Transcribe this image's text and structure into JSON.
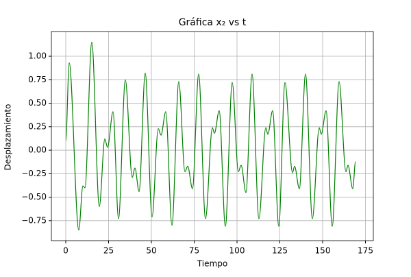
{
  "chart_data": {
    "type": "line",
    "title": "Gráfica x₂ vs t",
    "xlabel": "Tiempo",
    "ylabel": "Desplazamiento",
    "x": [
      0,
      2,
      7.6,
      10,
      11.2,
      15.2,
      19.6,
      22.8,
      24.4,
      27.6,
      30.8,
      34.8,
      38.8,
      40.4,
      42.8,
      46.4,
      50.4,
      54,
      55.6,
      58.4,
      62,
      66,
      69.6,
      71.2,
      74,
      77.6,
      81.6,
      85.6,
      86.8,
      89.6,
      93.2,
      97.2,
      100.8,
      102.4,
      105.2,
      108.8,
      112.8,
      116.8,
      118,
      120.8,
      124.4,
      128,
      132.4,
      133.6,
      136.4,
      140,
      144,
      148,
      149.2,
      152,
      155.6,
      159.6,
      163.6,
      164.8,
      167.6,
      169.2
    ],
    "series": [
      {
        "name": "x2",
        "color": "#008000",
        "values": [
          0.1,
          0.93,
          -0.85,
          -0.38,
          -0.4,
          1.15,
          -0.6,
          0.12,
          0.03,
          0.41,
          -0.73,
          0.75,
          -0.29,
          -0.19,
          -0.44,
          0.82,
          -0.71,
          0.23,
          0.16,
          0.41,
          -0.8,
          0.73,
          -0.23,
          -0.17,
          -0.41,
          0.81,
          -0.73,
          0.24,
          0.18,
          0.42,
          -0.81,
          0.72,
          -0.23,
          -0.16,
          -0.45,
          0.81,
          -0.73,
          0.24,
          0.17,
          0.42,
          -0.81,
          0.72,
          -0.24,
          -0.17,
          -0.41,
          0.81,
          -0.73,
          0.24,
          0.17,
          0.42,
          -0.81,
          0.73,
          -0.23,
          -0.16,
          -0.41,
          -0.12
        ]
      }
    ],
    "xlim": [
      -8.4,
      179.6
    ],
    "ylim": [
      -0.963,
      1.263
    ],
    "xticks": [
      0,
      25,
      50,
      75,
      100,
      125,
      150,
      175
    ],
    "yticks": [
      {
        "value": -0.75,
        "label": "−0.75"
      },
      {
        "value": -0.5,
        "label": "−0.50"
      },
      {
        "value": -0.25,
        "label": "−0.25"
      },
      {
        "value": 0,
        "label": "0.00"
      },
      {
        "value": 0.25,
        "label": "0.25"
      },
      {
        "value": 0.5,
        "label": "0.50"
      },
      {
        "value": 0.75,
        "label": "0.75"
      },
      {
        "value": 1,
        "label": "1.00"
      }
    ],
    "grid": true
  }
}
